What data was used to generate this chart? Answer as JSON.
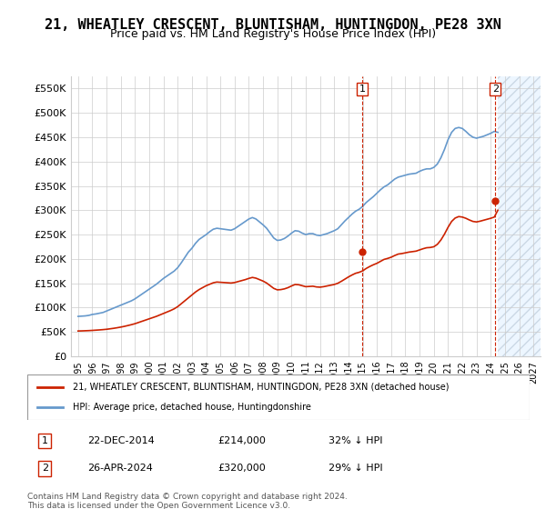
{
  "title": "21, WHEATLEY CRESCENT, BLUNTISHAM, HUNTINGDON, PE28 3XN",
  "subtitle": "Price paid vs. HM Land Registry's House Price Index (HPI)",
  "title_fontsize": 11,
  "subtitle_fontsize": 9,
  "ylim": [
    0,
    575000
  ],
  "yticks": [
    0,
    50000,
    100000,
    150000,
    200000,
    250000,
    300000,
    350000,
    400000,
    450000,
    500000,
    550000
  ],
  "ytick_labels": [
    "£0",
    "£50K",
    "£100K",
    "£150K",
    "£200K",
    "£250K",
    "£300K",
    "£350K",
    "£400K",
    "£450K",
    "£500K",
    "£550K"
  ],
  "xlim_start": 1994.5,
  "xlim_end": 2027.5,
  "xtick_years": [
    1995,
    1996,
    1997,
    1998,
    1999,
    2000,
    2001,
    2002,
    2003,
    2004,
    2005,
    2006,
    2007,
    2008,
    2009,
    2010,
    2011,
    2012,
    2013,
    2014,
    2015,
    2016,
    2017,
    2018,
    2019,
    2020,
    2021,
    2022,
    2023,
    2024,
    2025,
    2026,
    2027
  ],
  "hpi_color": "#6699cc",
  "price_color": "#cc2200",
  "hatch_color": "#ccddee",
  "marker1_x": 2014.97,
  "marker1_y": 214000,
  "marker2_x": 2024.32,
  "marker2_y": 320000,
  "legend_line1": "21, WHEATLEY CRESCENT, BLUNTISHAM, HUNTINGDON, PE28 3XN (detached house)",
  "legend_line2": "HPI: Average price, detached house, Huntingdonshire",
  "table_row1_num": "1",
  "table_row1_date": "22-DEC-2014",
  "table_row1_price": "£214,000",
  "table_row1_hpi": "32% ↓ HPI",
  "table_row2_num": "2",
  "table_row2_date": "26-APR-2024",
  "table_row2_price": "£320,000",
  "table_row2_hpi": "29% ↓ HPI",
  "footnote1": "Contains HM Land Registry data © Crown copyright and database right 2024.",
  "footnote2": "This data is licensed under the Open Government Licence v3.0.",
  "background_color": "#ffffff",
  "grid_color": "#cccccc",
  "hpi_years": [
    1995.0,
    1995.25,
    1995.5,
    1995.75,
    1996.0,
    1996.25,
    1996.5,
    1996.75,
    1997.0,
    1997.25,
    1997.5,
    1997.75,
    1998.0,
    1998.25,
    1998.5,
    1998.75,
    1999.0,
    1999.25,
    1999.5,
    1999.75,
    2000.0,
    2000.25,
    2000.5,
    2000.75,
    2001.0,
    2001.25,
    2001.5,
    2001.75,
    2002.0,
    2002.25,
    2002.5,
    2002.75,
    2003.0,
    2003.25,
    2003.5,
    2003.75,
    2004.0,
    2004.25,
    2004.5,
    2004.75,
    2005.0,
    2005.25,
    2005.5,
    2005.75,
    2006.0,
    2006.25,
    2006.5,
    2006.75,
    2007.0,
    2007.25,
    2007.5,
    2007.75,
    2008.0,
    2008.25,
    2008.5,
    2008.75,
    2009.0,
    2009.25,
    2009.5,
    2009.75,
    2010.0,
    2010.25,
    2010.5,
    2010.75,
    2011.0,
    2011.25,
    2011.5,
    2011.75,
    2012.0,
    2012.25,
    2012.5,
    2012.75,
    2013.0,
    2013.25,
    2013.5,
    2013.75,
    2014.0,
    2014.25,
    2014.5,
    2014.75,
    2015.0,
    2015.25,
    2015.5,
    2015.75,
    2016.0,
    2016.25,
    2016.5,
    2016.75,
    2017.0,
    2017.25,
    2017.5,
    2017.75,
    2018.0,
    2018.25,
    2018.5,
    2018.75,
    2019.0,
    2019.25,
    2019.5,
    2019.75,
    2020.0,
    2020.25,
    2020.5,
    2020.75,
    2021.0,
    2021.25,
    2021.5,
    2021.75,
    2022.0,
    2022.25,
    2022.5,
    2022.75,
    2023.0,
    2023.25,
    2023.5,
    2023.75,
    2024.0,
    2024.25,
    2024.5
  ],
  "hpi_values": [
    82000,
    82500,
    83000,
    84000,
    86000,
    87000,
    88500,
    90000,
    93000,
    96000,
    99000,
    102000,
    105000,
    108000,
    111000,
    114000,
    118000,
    123000,
    128000,
    133000,
    138000,
    143000,
    148000,
    154000,
    160000,
    165000,
    170000,
    175000,
    182000,
    192000,
    203000,
    214000,
    222000,
    232000,
    240000,
    245000,
    250000,
    256000,
    261000,
    263000,
    262000,
    261000,
    260000,
    259000,
    262000,
    267000,
    272000,
    277000,
    282000,
    285000,
    282000,
    276000,
    270000,
    263000,
    253000,
    243000,
    238000,
    239000,
    242000,
    247000,
    253000,
    258000,
    257000,
    253000,
    250000,
    252000,
    252000,
    249000,
    248000,
    250000,
    252000,
    255000,
    258000,
    262000,
    270000,
    278000,
    285000,
    292000,
    298000,
    302000,
    308000,
    316000,
    322000,
    328000,
    335000,
    342000,
    348000,
    352000,
    358000,
    364000,
    368000,
    370000,
    372000,
    374000,
    375000,
    376000,
    380000,
    383000,
    385000,
    385000,
    388000,
    395000,
    408000,
    425000,
    445000,
    460000,
    468000,
    470000,
    468000,
    462000,
    455000,
    450000,
    448000,
    450000,
    452000,
    455000,
    458000,
    462000,
    460000
  ],
  "price_years": [
    1995.0,
    1995.25,
    1995.5,
    1995.75,
    1996.0,
    1996.25,
    1996.5,
    1996.75,
    1997.0,
    1997.25,
    1997.5,
    1997.75,
    1998.0,
    1998.25,
    1998.5,
    1998.75,
    1999.0,
    1999.25,
    1999.5,
    1999.75,
    2000.0,
    2000.25,
    2000.5,
    2000.75,
    2001.0,
    2001.25,
    2001.5,
    2001.75,
    2002.0,
    2002.25,
    2002.5,
    2002.75,
    2003.0,
    2003.25,
    2003.5,
    2003.75,
    2004.0,
    2004.25,
    2004.5,
    2004.75,
    2005.0,
    2005.25,
    2005.5,
    2005.75,
    2006.0,
    2006.25,
    2006.5,
    2006.75,
    2007.0,
    2007.25,
    2007.5,
    2007.75,
    2008.0,
    2008.25,
    2008.5,
    2008.75,
    2009.0,
    2009.25,
    2009.5,
    2009.75,
    2010.0,
    2010.25,
    2010.5,
    2010.75,
    2011.0,
    2011.25,
    2011.5,
    2011.75,
    2012.0,
    2012.25,
    2012.5,
    2012.75,
    2013.0,
    2013.25,
    2013.5,
    2013.75,
    2014.0,
    2014.25,
    2014.5,
    2014.75,
    2015.0,
    2015.25,
    2015.5,
    2015.75,
    2016.0,
    2016.25,
    2016.5,
    2016.75,
    2017.0,
    2017.25,
    2017.5,
    2017.75,
    2018.0,
    2018.25,
    2018.5,
    2018.75,
    2019.0,
    2019.25,
    2019.5,
    2019.75,
    2020.0,
    2020.25,
    2020.5,
    2020.75,
    2021.0,
    2021.25,
    2021.5,
    2021.75,
    2022.0,
    2022.25,
    2022.5,
    2022.75,
    2023.0,
    2023.25,
    2023.5,
    2023.75,
    2024.0,
    2024.25,
    2024.5
  ],
  "price_values": [
    52000,
    52200,
    52500,
    52800,
    53200,
    53700,
    54200,
    54800,
    55500,
    56500,
    57500,
    58700,
    60000,
    61500,
    63200,
    65000,
    67000,
    69500,
    72000,
    74500,
    77000,
    79500,
    82000,
    85000,
    88000,
    91000,
    94000,
    97500,
    102000,
    108000,
    114000,
    120000,
    126000,
    132000,
    137000,
    141000,
    145000,
    148000,
    151000,
    152500,
    152000,
    151500,
    151000,
    150500,
    151500,
    153500,
    155500,
    157500,
    160000,
    162000,
    160500,
    157500,
    154500,
    150500,
    145000,
    139500,
    136500,
    137000,
    138500,
    141000,
    144500,
    147500,
    147000,
    145000,
    143000,
    143500,
    144000,
    142500,
    142000,
    143000,
    144500,
    146000,
    147500,
    150000,
    154000,
    158500,
    163000,
    167000,
    170500,
    172500,
    175500,
    180500,
    184500,
    188000,
    191000,
    195000,
    199000,
    201000,
    203500,
    207000,
    210000,
    211000,
    212500,
    214000,
    215000,
    216000,
    218500,
    221000,
    223000,
    223500,
    225000,
    230000,
    239000,
    251000,
    265000,
    277000,
    284000,
    287000,
    286000,
    283500,
    280000,
    277000,
    276000,
    277500,
    279500,
    281500,
    283500,
    286000,
    300000
  ]
}
